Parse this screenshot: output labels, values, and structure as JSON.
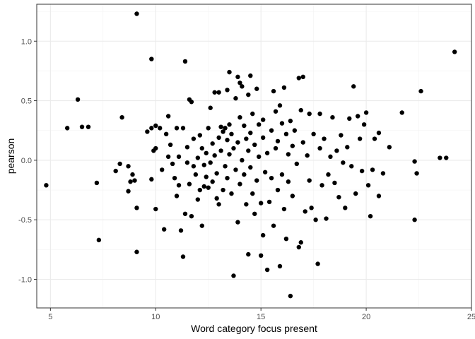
{
  "chart_data": {
    "type": "scatter",
    "title": "",
    "xlabel": "Word category focus present",
    "ylabel": "pearson",
    "xlim": [
      4.35,
      25.0
    ],
    "ylim": [
      -1.24,
      1.31
    ],
    "xticks": [
      5,
      10,
      15,
      20,
      25
    ],
    "yticks": [
      -1.0,
      -0.5,
      0.0,
      0.5,
      1.0
    ],
    "ytick_labels": [
      "-1.0",
      "-0.5",
      "0.0",
      "0.5",
      "1.0"
    ],
    "grid": true,
    "legend": "none",
    "point_color": "#000000",
    "points": [
      {
        "x": 4.8,
        "y": -0.21
      },
      {
        "x": 5.8,
        "y": 0.27
      },
      {
        "x": 6.3,
        "y": 0.51
      },
      {
        "x": 6.5,
        "y": 0.28
      },
      {
        "x": 6.8,
        "y": 0.28
      },
      {
        "x": 7.2,
        "y": -0.19
      },
      {
        "x": 7.3,
        "y": -0.67
      },
      {
        "x": 8.1,
        "y": -0.09
      },
      {
        "x": 8.3,
        "y": -0.03
      },
      {
        "x": 8.4,
        "y": 0.36
      },
      {
        "x": 8.7,
        "y": -0.05
      },
      {
        "x": 8.7,
        "y": -0.26
      },
      {
        "x": 8.8,
        "y": -0.18
      },
      {
        "x": 8.9,
        "y": -0.12
      },
      {
        "x": 9.0,
        "y": -0.17
      },
      {
        "x": 9.1,
        "y": 1.23
      },
      {
        "x": 9.1,
        "y": -0.77
      },
      {
        "x": 9.1,
        "y": -0.4
      },
      {
        "x": 9.6,
        "y": 0.24
      },
      {
        "x": 9.8,
        "y": 0.27
      },
      {
        "x": 9.8,
        "y": 0.85
      },
      {
        "x": 9.8,
        "y": -0.16
      },
      {
        "x": 9.9,
        "y": 0.08
      },
      {
        "x": 10.0,
        "y": 0.29
      },
      {
        "x": 10.0,
        "y": -0.41
      },
      {
        "x": 10.0,
        "y": 0.1
      },
      {
        "x": 10.2,
        "y": 0.27
      },
      {
        "x": 10.3,
        "y": -0.08
      },
      {
        "x": 10.4,
        "y": -0.58
      },
      {
        "x": 10.5,
        "y": 0.22
      },
      {
        "x": 10.6,
        "y": 0.37
      },
      {
        "x": 10.6,
        "y": 0.03
      },
      {
        "x": 10.7,
        "y": 0.13
      },
      {
        "x": 10.8,
        "y": -0.03
      },
      {
        "x": 10.9,
        "y": -0.15
      },
      {
        "x": 11.0,
        "y": 0.27
      },
      {
        "x": 11.0,
        "y": -0.3
      },
      {
        "x": 11.1,
        "y": 0.03
      },
      {
        "x": 11.1,
        "y": -0.21
      },
      {
        "x": 11.2,
        "y": -0.59
      },
      {
        "x": 11.3,
        "y": -0.81
      },
      {
        "x": 11.3,
        "y": 0.27
      },
      {
        "x": 11.4,
        "y": 0.83
      },
      {
        "x": 11.4,
        "y": -0.45
      },
      {
        "x": 11.5,
        "y": 0.11
      },
      {
        "x": 11.5,
        "y": -0.02
      },
      {
        "x": 11.6,
        "y": 0.51
      },
      {
        "x": 11.6,
        "y": -0.2
      },
      {
        "x": 11.7,
        "y": 0.49
      },
      {
        "x": 11.7,
        "y": -0.47
      },
      {
        "x": 11.8,
        "y": 0.18
      },
      {
        "x": 11.8,
        "y": -0.05
      },
      {
        "x": 11.9,
        "y": -0.12
      },
      {
        "x": 12.0,
        "y": 0.02
      },
      {
        "x": 12.0,
        "y": -0.33
      },
      {
        "x": 12.1,
        "y": 0.21
      },
      {
        "x": 12.1,
        "y": -0.25
      },
      {
        "x": 12.2,
        "y": 0.1
      },
      {
        "x": 12.2,
        "y": -0.55
      },
      {
        "x": 12.3,
        "y": -0.04
      },
      {
        "x": 12.3,
        "y": -0.22
      },
      {
        "x": 12.4,
        "y": 0.06
      },
      {
        "x": 12.4,
        "y": -0.14
      },
      {
        "x": 12.5,
        "y": 0.27
      },
      {
        "x": 12.5,
        "y": -0.23
      },
      {
        "x": 12.6,
        "y": 0.44
      },
      {
        "x": 12.6,
        "y": -0.02
      },
      {
        "x": 12.7,
        "y": 0.14
      },
      {
        "x": 12.7,
        "y": -0.18
      },
      {
        "x": 12.8,
        "y": 0.57
      },
      {
        "x": 12.8,
        "y": 0.04
      },
      {
        "x": 12.9,
        "y": -0.11
      },
      {
        "x": 12.9,
        "y": -0.32
      },
      {
        "x": 13.0,
        "y": 0.57
      },
      {
        "x": 13.0,
        "y": 0.19
      },
      {
        "x": 13.0,
        "y": -0.37
      },
      {
        "x": 13.1,
        "y": 0.28
      },
      {
        "x": 13.1,
        "y": 0.08
      },
      {
        "x": 13.2,
        "y": -0.25
      },
      {
        "x": 13.2,
        "y": 0.24
      },
      {
        "x": 13.3,
        "y": 0.27
      },
      {
        "x": 13.3,
        "y": -0.05
      },
      {
        "x": 13.4,
        "y": 0.59
      },
      {
        "x": 13.4,
        "y": 0.17
      },
      {
        "x": 13.4,
        "y": -0.15
      },
      {
        "x": 13.5,
        "y": 0.74
      },
      {
        "x": 13.5,
        "y": 0.3
      },
      {
        "x": 13.5,
        "y": 0.05
      },
      {
        "x": 13.6,
        "y": -0.28
      },
      {
        "x": 13.6,
        "y": 0.22
      },
      {
        "x": 13.7,
        "y": -0.97
      },
      {
        "x": 13.7,
        "y": 0.1
      },
      {
        "x": 13.8,
        "y": 0.52
      },
      {
        "x": 13.8,
        "y": -0.08
      },
      {
        "x": 13.9,
        "y": 0.7
      },
      {
        "x": 13.9,
        "y": 0.15
      },
      {
        "x": 13.9,
        "y": -0.52
      },
      {
        "x": 14.0,
        "y": 0.65
      },
      {
        "x": 14.0,
        "y": 0.36
      },
      {
        "x": 14.0,
        "y": -0.2
      },
      {
        "x": 14.1,
        "y": 0.62
      },
      {
        "x": 14.1,
        "y": 0.0
      },
      {
        "x": 14.2,
        "y": 0.29
      },
      {
        "x": 14.2,
        "y": -0.12
      },
      {
        "x": 14.3,
        "y": 0.18
      },
      {
        "x": 14.3,
        "y": -0.37
      },
      {
        "x": 14.4,
        "y": 0.55
      },
      {
        "x": 14.4,
        "y": 0.08
      },
      {
        "x": 14.4,
        "y": -0.79
      },
      {
        "x": 14.5,
        "y": 0.71
      },
      {
        "x": 14.5,
        "y": 0.23
      },
      {
        "x": 14.5,
        "y": -0.06
      },
      {
        "x": 14.6,
        "y": 0.39
      },
      {
        "x": 14.6,
        "y": -0.28
      },
      {
        "x": 14.7,
        "y": 0.13
      },
      {
        "x": 14.7,
        "y": -0.45
      },
      {
        "x": 14.8,
        "y": 0.6
      },
      {
        "x": 14.8,
        "y": -0.17
      },
      {
        "x": 14.9,
        "y": 0.3
      },
      {
        "x": 14.9,
        "y": 0.03
      },
      {
        "x": 15.0,
        "y": -0.8
      },
      {
        "x": 15.0,
        "y": -0.36
      },
      {
        "x": 15.1,
        "y": 0.34
      },
      {
        "x": 15.1,
        "y": -0.63
      },
      {
        "x": 15.1,
        "y": 0.19
      },
      {
        "x": 15.2,
        "y": -0.1
      },
      {
        "x": 15.3,
        "y": -0.92
      },
      {
        "x": 15.3,
        "y": 0.06
      },
      {
        "x": 15.4,
        "y": -0.35
      },
      {
        "x": 15.5,
        "y": 0.25
      },
      {
        "x": 15.5,
        "y": -0.15
      },
      {
        "x": 15.6,
        "y": 0.58
      },
      {
        "x": 15.6,
        "y": -0.55
      },
      {
        "x": 15.7,
        "y": 0.41
      },
      {
        "x": 15.7,
        "y": 0.1
      },
      {
        "x": 15.8,
        "y": -0.25
      },
      {
        "x": 15.8,
        "y": 0.16
      },
      {
        "x": 15.9,
        "y": -0.89
      },
      {
        "x": 15.9,
        "y": 0.46
      },
      {
        "x": 16.0,
        "y": 0.31
      },
      {
        "x": 16.0,
        "y": -0.12
      },
      {
        "x": 16.1,
        "y": 0.61
      },
      {
        "x": 16.1,
        "y": -0.41
      },
      {
        "x": 16.2,
        "y": 0.22
      },
      {
        "x": 16.2,
        "y": -0.66
      },
      {
        "x": 16.3,
        "y": 0.05
      },
      {
        "x": 16.3,
        "y": -0.18
      },
      {
        "x": 16.4,
        "y": -1.14
      },
      {
        "x": 16.4,
        "y": 0.33
      },
      {
        "x": 16.5,
        "y": 0.12
      },
      {
        "x": 16.5,
        "y": -0.3
      },
      {
        "x": 16.6,
        "y": 0.25
      },
      {
        "x": 16.7,
        "y": -0.03
      },
      {
        "x": 16.8,
        "y": 0.69
      },
      {
        "x": 16.8,
        "y": -0.73
      },
      {
        "x": 16.9,
        "y": 0.42
      },
      {
        "x": 16.9,
        "y": -0.69
      },
      {
        "x": 17.0,
        "y": 0.7
      },
      {
        "x": 17.0,
        "y": 0.15
      },
      {
        "x": 17.1,
        "y": -0.43
      },
      {
        "x": 17.2,
        "y": 0.04
      },
      {
        "x": 17.3,
        "y": -0.17
      },
      {
        "x": 17.3,
        "y": 0.39
      },
      {
        "x": 17.4,
        "y": -0.4
      },
      {
        "x": 17.5,
        "y": 0.22
      },
      {
        "x": 17.6,
        "y": -0.5
      },
      {
        "x": 17.7,
        "y": -0.87
      },
      {
        "x": 17.8,
        "y": 0.39
      },
      {
        "x": 17.8,
        "y": 0.1
      },
      {
        "x": 17.9,
        "y": -0.21
      },
      {
        "x": 18.0,
        "y": 0.18
      },
      {
        "x": 18.1,
        "y": -0.49
      },
      {
        "x": 18.2,
        "y": -0.12
      },
      {
        "x": 18.3,
        "y": 0.03
      },
      {
        "x": 18.4,
        "y": 0.36
      },
      {
        "x": 18.5,
        "y": -0.19
      },
      {
        "x": 18.6,
        "y": 0.08
      },
      {
        "x": 18.7,
        "y": -0.31
      },
      {
        "x": 18.8,
        "y": 0.21
      },
      {
        "x": 18.9,
        "y": -0.02
      },
      {
        "x": 19.0,
        "y": -0.4
      },
      {
        "x": 19.1,
        "y": 0.11
      },
      {
        "x": 19.2,
        "y": 0.35
      },
      {
        "x": 19.3,
        "y": -0.05
      },
      {
        "x": 19.4,
        "y": 0.62
      },
      {
        "x": 19.5,
        "y": -0.28
      },
      {
        "x": 19.6,
        "y": 0.37
      },
      {
        "x": 19.7,
        "y": 0.18
      },
      {
        "x": 19.8,
        "y": -0.09
      },
      {
        "x": 19.9,
        "y": 0.3
      },
      {
        "x": 20.0,
        "y": 0.4
      },
      {
        "x": 20.1,
        "y": -0.21
      },
      {
        "x": 20.2,
        "y": -0.47
      },
      {
        "x": 20.3,
        "y": -0.08
      },
      {
        "x": 20.4,
        "y": 0.18
      },
      {
        "x": 20.6,
        "y": 0.23
      },
      {
        "x": 20.6,
        "y": -0.3
      },
      {
        "x": 20.8,
        "y": -0.11
      },
      {
        "x": 21.1,
        "y": 0.11
      },
      {
        "x": 21.7,
        "y": 0.4
      },
      {
        "x": 22.3,
        "y": -0.01
      },
      {
        "x": 22.3,
        "y": -0.5
      },
      {
        "x": 22.4,
        "y": -0.11
      },
      {
        "x": 22.6,
        "y": 0.58
      },
      {
        "x": 23.5,
        "y": 0.02
      },
      {
        "x": 23.8,
        "y": 0.02
      },
      {
        "x": 24.2,
        "y": 0.91
      }
    ]
  }
}
